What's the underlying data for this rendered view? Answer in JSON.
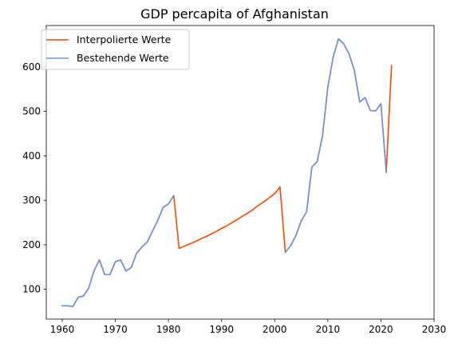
{
  "chart_data": {
    "type": "line",
    "title": "GDP percapita of Afghanistan",
    "xlabel": "",
    "ylabel": "",
    "xlim": [
      1957,
      2030
    ],
    "ylim": [
      33,
      693
    ],
    "x_ticks": [
      1960,
      1970,
      1980,
      1990,
      2000,
      2010,
      2020,
      2030
    ],
    "y_ticks": [
      100,
      200,
      300,
      400,
      500,
      600
    ],
    "grid": false,
    "legend_position": "top-left",
    "series": [
      {
        "name": "Interpolierte Werte",
        "color": "#ff4500",
        "x": [
          1960,
          1961,
          1962,
          1963,
          1964,
          1965,
          1966,
          1967,
          1968,
          1969,
          1970,
          1971,
          1972,
          1973,
          1974,
          1975,
          1976,
          1977,
          1978,
          1979,
          1980,
          1981,
          1982,
          1983,
          1984,
          1985,
          1986,
          1987,
          1988,
          1989,
          1990,
          1991,
          1992,
          1993,
          1994,
          1995,
          1996,
          1997,
          1998,
          1999,
          2000,
          2001,
          2002,
          2003,
          2004,
          2005,
          2006,
          2007,
          2008,
          2009,
          2010,
          2011,
          2012,
          2013,
          2014,
          2015,
          2016,
          2017,
          2018,
          2019,
          2020,
          2021,
          2022
        ],
        "values": [
          63,
          63,
          61,
          82,
          85,
          103,
          142,
          166,
          133,
          133,
          162,
          166,
          141,
          149,
          181,
          195,
          206,
          231,
          255,
          284,
          292,
          311,
          192,
          197,
          202,
          207,
          213,
          218,
          224,
          230,
          237,
          243,
          250,
          257,
          265,
          272,
          280,
          289,
          297,
          306,
          315,
          330,
          183,
          198,
          221,
          254,
          274,
          375,
          387,
          445,
          554,
          622,
          663,
          652,
          629,
          592,
          521,
          531,
          502,
          501,
          517,
          363,
          603
        ]
      },
      {
        "name": "Bestehende Werte",
        "color": "#6495ed",
        "x": [
          1960,
          1961,
          1962,
          1963,
          1964,
          1965,
          1966,
          1967,
          1968,
          1969,
          1970,
          1971,
          1972,
          1973,
          1974,
          1975,
          1976,
          1977,
          1978,
          1979,
          1980,
          1981,
          null,
          2002,
          2003,
          2004,
          2005,
          2006,
          2007,
          2008,
          2009,
          2010,
          2011,
          2012,
          2013,
          2014,
          2015,
          2016,
          2017,
          2018,
          2019,
          2020,
          2021
        ],
        "values": [
          63,
          63,
          61,
          82,
          85,
          103,
          142,
          166,
          133,
          133,
          162,
          166,
          141,
          149,
          181,
          195,
          206,
          231,
          255,
          284,
          292,
          311,
          null,
          183,
          198,
          221,
          254,
          274,
          375,
          387,
          445,
          554,
          622,
          663,
          652,
          629,
          592,
          521,
          531,
          502,
          501,
          517,
          363
        ]
      }
    ]
  }
}
